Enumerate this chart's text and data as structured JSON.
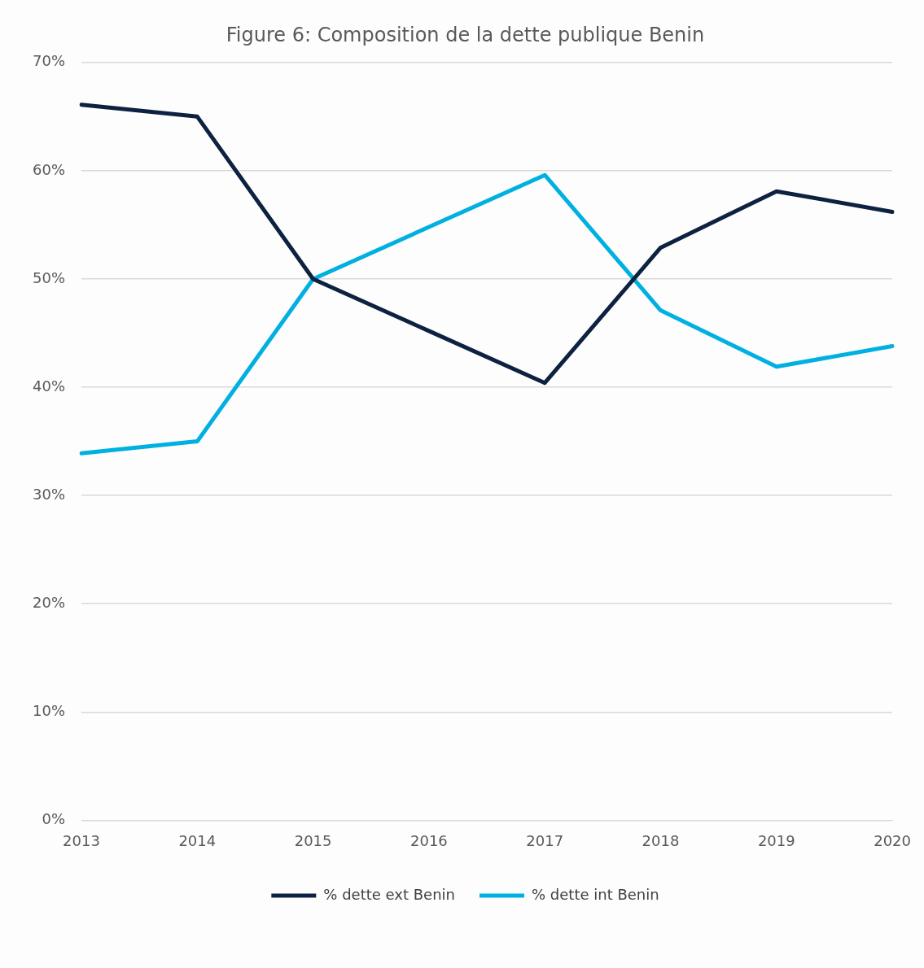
{
  "chart_data": {
    "type": "line",
    "title": "Figure 6: Composition de la dette publique Benin",
    "categories": [
      "2013",
      "2014",
      "2015",
      "2016",
      "2017",
      "2018",
      "2019",
      "2020"
    ],
    "series": [
      {
        "name": "% dette ext Benin",
        "color": "#0d2240",
        "values": [
          66.1,
          65.0,
          50.0,
          45.2,
          40.4,
          52.9,
          58.1,
          56.2
        ]
      },
      {
        "name": "% dette int Benin",
        "color": "#00b0e0",
        "values": [
          33.9,
          35.0,
          50.0,
          54.8,
          59.6,
          47.1,
          41.9,
          43.8
        ]
      }
    ],
    "ylim": [
      0,
      70
    ],
    "yticks": [
      {
        "value": 0,
        "label": "0%"
      },
      {
        "value": 10,
        "label": "10%"
      },
      {
        "value": 20,
        "label": "20%"
      },
      {
        "value": 30,
        "label": "30%"
      },
      {
        "value": 40,
        "label": "40%"
      },
      {
        "value": 50,
        "label": "50%"
      },
      {
        "value": 60,
        "label": "60%"
      },
      {
        "value": 70,
        "label": "70%"
      }
    ],
    "grid": "y",
    "legend": "bottom",
    "marker": "none",
    "line_style": "solid"
  }
}
